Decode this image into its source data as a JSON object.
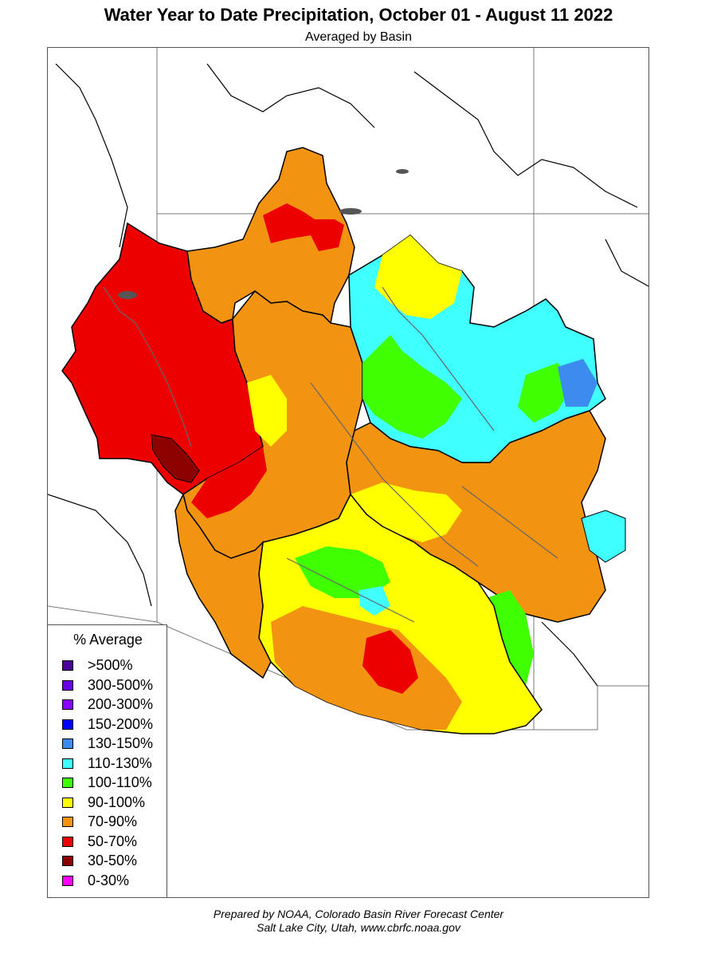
{
  "header": {
    "title": "Water Year to Date Precipitation, October 01  - August 11 2022",
    "subtitle": "Averaged by Basin"
  },
  "legend": {
    "title": "% Average",
    "items": [
      {
        "label": ">500%",
        "color": "#4b0096"
      },
      {
        "label": "300-500%",
        "color": "#6a00e6"
      },
      {
        "label": "200-300%",
        "color": "#8a00ff"
      },
      {
        "label": "150-200%",
        "color": "#0000ff"
      },
      {
        "label": "130-150%",
        "color": "#3c8cf0"
      },
      {
        "label": "110-130%",
        "color": "#40ffff"
      },
      {
        "label": "100-110%",
        "color": "#40ff00"
      },
      {
        "label": "90-100%",
        "color": "#ffff00"
      },
      {
        "label": "70-90%",
        "color": "#f29411"
      },
      {
        "label": "50-70%",
        "color": "#ec0000"
      },
      {
        "label": "30-50%",
        "color": "#8c0000"
      },
      {
        "label": "0-30%",
        "color": "#ff00ff"
      }
    ]
  },
  "credit": {
    "line1": "Prepared by NOAA, Colorado Basin River Forecast Center",
    "line2": "Salt Lake City, Utah, www.cbrfc.noaa.gov"
  },
  "map_colors": {
    "red": "#ec0000",
    "dark_red": "#8c0000",
    "orange": "#f29411",
    "yellow": "#ffff00",
    "green": "#40ff00",
    "cyan": "#40ffff",
    "blue": "#3c8cf0",
    "river": "#666666",
    "boundary": "#000000"
  }
}
